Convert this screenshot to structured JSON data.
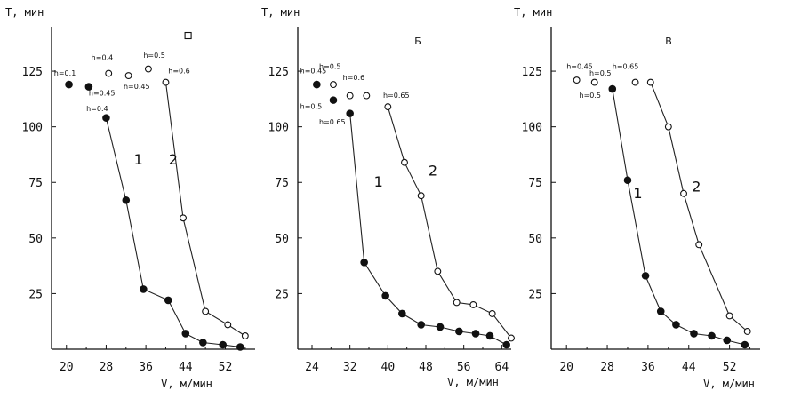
{
  "chart_data": [
    {
      "type": "line",
      "panel_label": "",
      "ylabel": "T, мин",
      "xlabel": "V, м/мин",
      "xlim": [
        17,
        58
      ],
      "ylim": [
        0,
        145
      ],
      "xticks": [
        "20",
        "28",
        "36",
        "44",
        "52"
      ],
      "xtick_values": [
        20,
        28,
        36,
        44,
        52
      ],
      "yticks": [
        "25",
        "50",
        "75",
        "100",
        "125"
      ],
      "ytick_values": [
        25,
        50,
        75,
        100,
        125
      ],
      "series": [
        {
          "name": "1",
          "marker": "filled",
          "x": [
            28,
            32,
            35.5,
            40.5,
            44,
            47.5,
            51.5,
            55
          ],
          "y": [
            104,
            67,
            27,
            22,
            7,
            3,
            2,
            1
          ]
        },
        {
          "name": "2",
          "marker": "open",
          "x": [
            40,
            43.5,
            48,
            52.5,
            56
          ],
          "y": [
            120,
            59,
            17,
            11,
            6
          ]
        }
      ],
      "extra_points": [
        {
          "x": 20.5,
          "y": 119,
          "marker": "filled"
        },
        {
          "x": 24.5,
          "y": 118,
          "marker": "filled"
        },
        {
          "x": 28.5,
          "y": 124,
          "marker": "open"
        },
        {
          "x": 32.5,
          "y": 123,
          "marker": "open"
        },
        {
          "x": 36.5,
          "y": 126,
          "marker": "open"
        },
        {
          "x": 44.5,
          "y": 141,
          "marker": "open-square"
        }
      ],
      "annotations": [
        {
          "text": "h=0.1",
          "x": 17.5,
          "y": 123
        },
        {
          "text": "h=0.4",
          "x": 25,
          "y": 130
        },
        {
          "text": "h=0.45",
          "x": 24.5,
          "y": 114
        },
        {
          "text": "h=0.45",
          "x": 31.5,
          "y": 117
        },
        {
          "text": "h=0.5",
          "x": 35.5,
          "y": 131
        },
        {
          "text": "h=0.6",
          "x": 40.5,
          "y": 124
        },
        {
          "text": "h=0.4",
          "x": 24,
          "y": 107
        }
      ],
      "curve_labels": [
        {
          "text": "1",
          "x": 34.5,
          "y": 83
        },
        {
          "text": "2",
          "x": 41.5,
          "y": 83
        }
      ]
    },
    {
      "type": "line",
      "panel_label": "Б",
      "ylabel": "T, мин",
      "xlabel": "V, м/мин",
      "xlim": [
        21,
        66
      ],
      "ylim": [
        0,
        145
      ],
      "xticks": [
        "24",
        "32",
        "40",
        "48",
        "56",
        "64"
      ],
      "xtick_values": [
        24,
        32,
        40,
        48,
        56,
        64
      ],
      "yticks": [
        "25",
        "50",
        "75",
        "100",
        "125"
      ],
      "ytick_values": [
        25,
        50,
        75,
        100,
        125
      ],
      "series": [
        {
          "name": "1",
          "marker": "filled",
          "x": [
            32,
            35,
            39.5,
            43,
            47,
            51,
            55,
            58.5,
            61.5,
            65
          ],
          "y": [
            106,
            39,
            24,
            16,
            11,
            10,
            8,
            7,
            6,
            2
          ]
        },
        {
          "name": "2",
          "marker": "open",
          "x": [
            40,
            43.5,
            47,
            50.5,
            54.5,
            58,
            62,
            66
          ],
          "y": [
            109,
            84,
            69,
            35,
            21,
            20,
            16,
            5
          ]
        }
      ],
      "extra_points": [
        {
          "x": 25,
          "y": 119,
          "marker": "filled"
        },
        {
          "x": 28.5,
          "y": 119,
          "marker": "open"
        },
        {
          "x": 28.5,
          "y": 112,
          "marker": "filled"
        },
        {
          "x": 32,
          "y": 114,
          "marker": "open"
        },
        {
          "x": 35.5,
          "y": 114,
          "marker": "open"
        }
      ],
      "annotations": [
        {
          "text": "h=0.45",
          "x": 21.5,
          "y": 124
        },
        {
          "text": "h=0.5",
          "x": 25.5,
          "y": 126
        },
        {
          "text": "h=0.6",
          "x": 30.5,
          "y": 121
        },
        {
          "text": "h=0.5",
          "x": 21.5,
          "y": 108
        },
        {
          "text": "h=0.65",
          "x": 25.5,
          "y": 101
        },
        {
          "text": "h=0.65",
          "x": 39,
          "y": 113
        }
      ],
      "curve_labels": [
        {
          "text": "1",
          "x": 38,
          "y": 73
        },
        {
          "text": "2",
          "x": 49.5,
          "y": 78
        }
      ]
    },
    {
      "type": "line",
      "panel_label": "В",
      "ylabel": "T, мин",
      "xlabel": "V, м/мин",
      "xlim": [
        17,
        58
      ],
      "ylim": [
        0,
        145
      ],
      "xticks": [
        "20",
        "28",
        "36",
        "44",
        "52"
      ],
      "xtick_values": [
        20,
        28,
        36,
        44,
        52
      ],
      "yticks": [
        "25",
        "50",
        "75",
        "100",
        "125"
      ],
      "ytick_values": [
        25,
        50,
        75,
        100,
        125
      ],
      "series": [
        {
          "name": "1",
          "marker": "filled",
          "x": [
            29,
            32,
            35.5,
            38.5,
            41.5,
            45,
            48.5,
            51.5,
            55
          ],
          "y": [
            117,
            76,
            33,
            17,
            11,
            7,
            6,
            4,
            2
          ]
        },
        {
          "name": "2",
          "marker": "open",
          "x": [
            36.5,
            40,
            43,
            46,
            52,
            55.5
          ],
          "y": [
            120,
            100,
            70,
            47,
            15,
            8
          ]
        }
      ],
      "extra_points": [
        {
          "x": 22,
          "y": 121,
          "marker": "open"
        },
        {
          "x": 25.5,
          "y": 120,
          "marker": "open"
        },
        {
          "x": 33.5,
          "y": 120,
          "marker": "open"
        }
      ],
      "annotations": [
        {
          "text": "h=0.45",
          "x": 20,
          "y": 126
        },
        {
          "text": "h=0.5",
          "x": 24.5,
          "y": 123
        },
        {
          "text": "h=0.65",
          "x": 29,
          "y": 126
        },
        {
          "text": "h=0.5",
          "x": 22.5,
          "y": 113
        }
      ],
      "curve_labels": [
        {
          "text": "1",
          "x": 34,
          "y": 68
        },
        {
          "text": "2",
          "x": 45.5,
          "y": 71
        }
      ]
    }
  ]
}
